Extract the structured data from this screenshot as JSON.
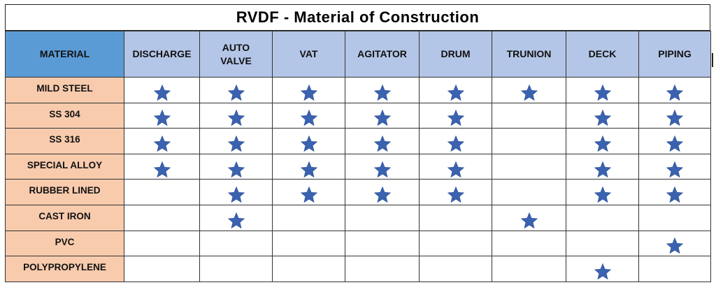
{
  "title": "RVDF - Material of Construction",
  "columns": [
    "MATERIAL",
    "DISCHARGE",
    "AUTO\nVALVE",
    "VAT",
    "AGITATOR",
    "DRUM",
    "TRUNION",
    "DECK",
    "PIPING"
  ],
  "rows": [
    {
      "material": "MILD STEEL",
      "marks": [
        true,
        true,
        true,
        true,
        true,
        true,
        true,
        true
      ]
    },
    {
      "material": "SS 304",
      "marks": [
        true,
        true,
        true,
        true,
        true,
        false,
        true,
        true
      ]
    },
    {
      "material": "SS 316",
      "marks": [
        true,
        true,
        true,
        true,
        true,
        false,
        true,
        true
      ]
    },
    {
      "material": "SPECIAL ALLOY",
      "marks": [
        true,
        true,
        true,
        true,
        true,
        false,
        true,
        true
      ]
    },
    {
      "material": "RUBBER LINED",
      "marks": [
        false,
        true,
        true,
        true,
        true,
        false,
        true,
        true
      ]
    },
    {
      "material": "CAST IRON",
      "marks": [
        false,
        true,
        false,
        false,
        false,
        true,
        false,
        false
      ]
    },
    {
      "material": "PVC",
      "marks": [
        false,
        false,
        false,
        false,
        false,
        false,
        false,
        true
      ]
    },
    {
      "material": "POLYPROPYLENE",
      "marks": [
        false,
        false,
        false,
        false,
        false,
        false,
        true,
        false
      ]
    }
  ],
  "icon": "star-icon",
  "colors": {
    "header_material_bg": "#5b9bd5",
    "header_bg": "#b4c6e7",
    "material_cell_bg": "#f8cbad",
    "star_fill": "#3a62b0"
  }
}
